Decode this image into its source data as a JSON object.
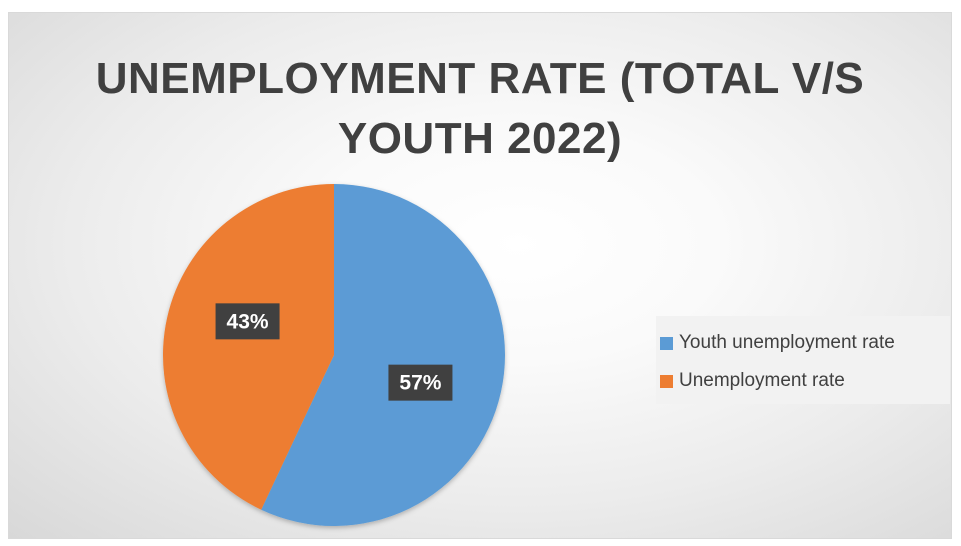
{
  "chart_data": {
    "type": "pie",
    "title_lines": [
      "UNEMPLOYMENT RATE (TOTAL V/S",
      "YOUTH 2022)"
    ],
    "slices": [
      {
        "name": "Youth unemployment rate",
        "value": 57,
        "label": "57%",
        "color": "#5b9bd5"
      },
      {
        "name": "Unemployment rate",
        "value": 43,
        "label": "43%",
        "color": "#ed7d31"
      }
    ],
    "legend_position": "right"
  }
}
